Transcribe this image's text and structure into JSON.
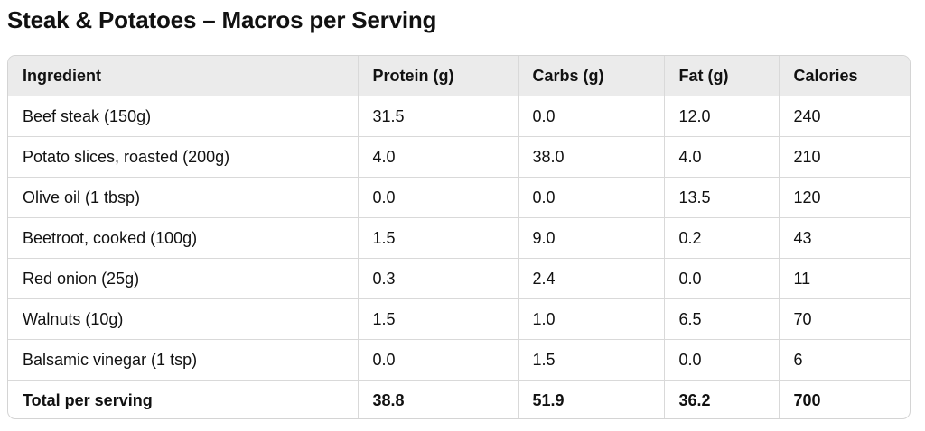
{
  "title": "Steak & Potatoes – Macros per Serving",
  "table": {
    "headers": [
      "Ingredient",
      "Protein (g)",
      "Carbs (g)",
      "Fat (g)",
      "Calories"
    ],
    "rows": [
      [
        "Beef steak (150g)",
        "31.5",
        "0.0",
        "12.0",
        "240"
      ],
      [
        "Potato slices, roasted (200g)",
        "4.0",
        "38.0",
        "4.0",
        "210"
      ],
      [
        "Olive oil (1 tbsp)",
        "0.0",
        "0.0",
        "13.5",
        "120"
      ],
      [
        "Beetroot, cooked (100g)",
        "1.5",
        "9.0",
        "0.2",
        "43"
      ],
      [
        "Red onion (25g)",
        "0.3",
        "2.4",
        "0.0",
        "11"
      ],
      [
        "Walnuts (10g)",
        "1.5",
        "1.0",
        "6.5",
        "70"
      ],
      [
        "Balsamic vinegar (1 tsp)",
        "0.0",
        "1.5",
        "0.0",
        "6"
      ]
    ],
    "total": [
      "Total per serving",
      "38.8",
      "51.9",
      "36.2",
      "700"
    ]
  }
}
